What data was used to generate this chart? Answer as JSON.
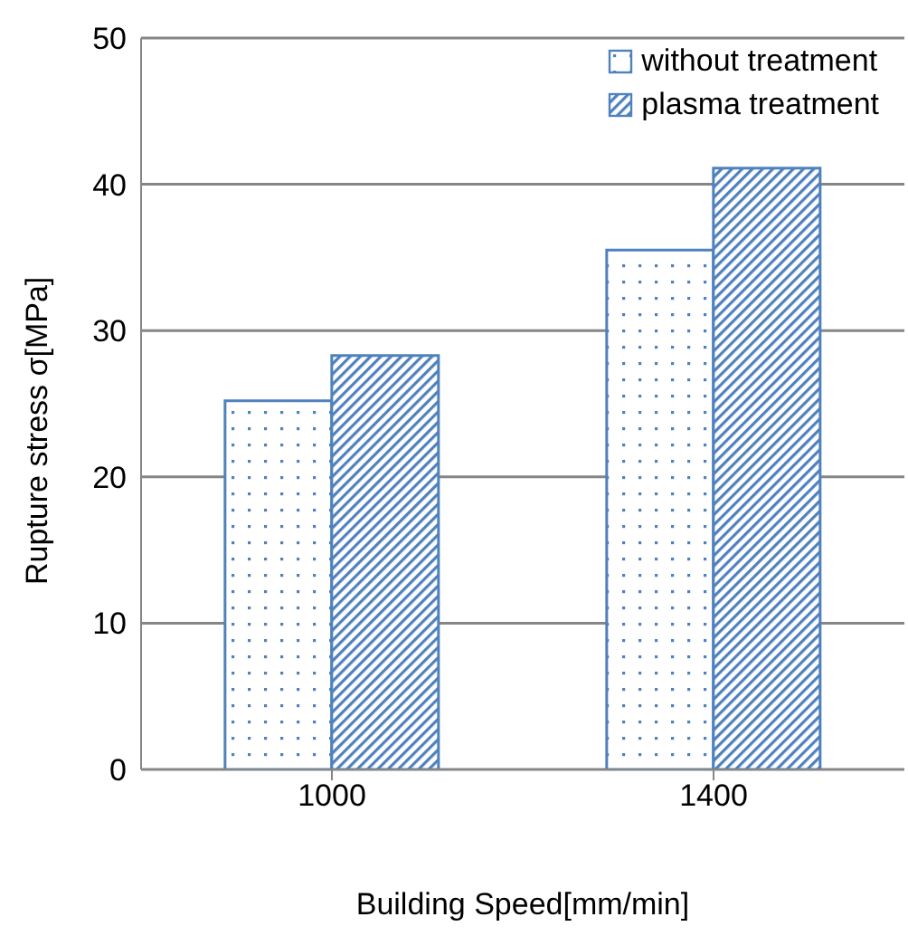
{
  "chart_data": {
    "type": "bar",
    "categories": [
      "1000",
      "1400"
    ],
    "series": [
      {
        "name": "without treatment",
        "color": "#4f81bd",
        "values": [
          25.2,
          35.5
        ]
      },
      {
        "name": "plasma treatment",
        "color": "#4f81bd",
        "values": [
          28.3,
          41.1
        ]
      }
    ],
    "xlabel": "Building Speed[mm/min]",
    "ylabel": "Rupture stress  σ[MPa]",
    "ylim": [
      0,
      50
    ],
    "yticks": [
      0,
      10,
      20,
      30,
      40,
      50
    ],
    "grid": "y",
    "legend": "top right"
  }
}
